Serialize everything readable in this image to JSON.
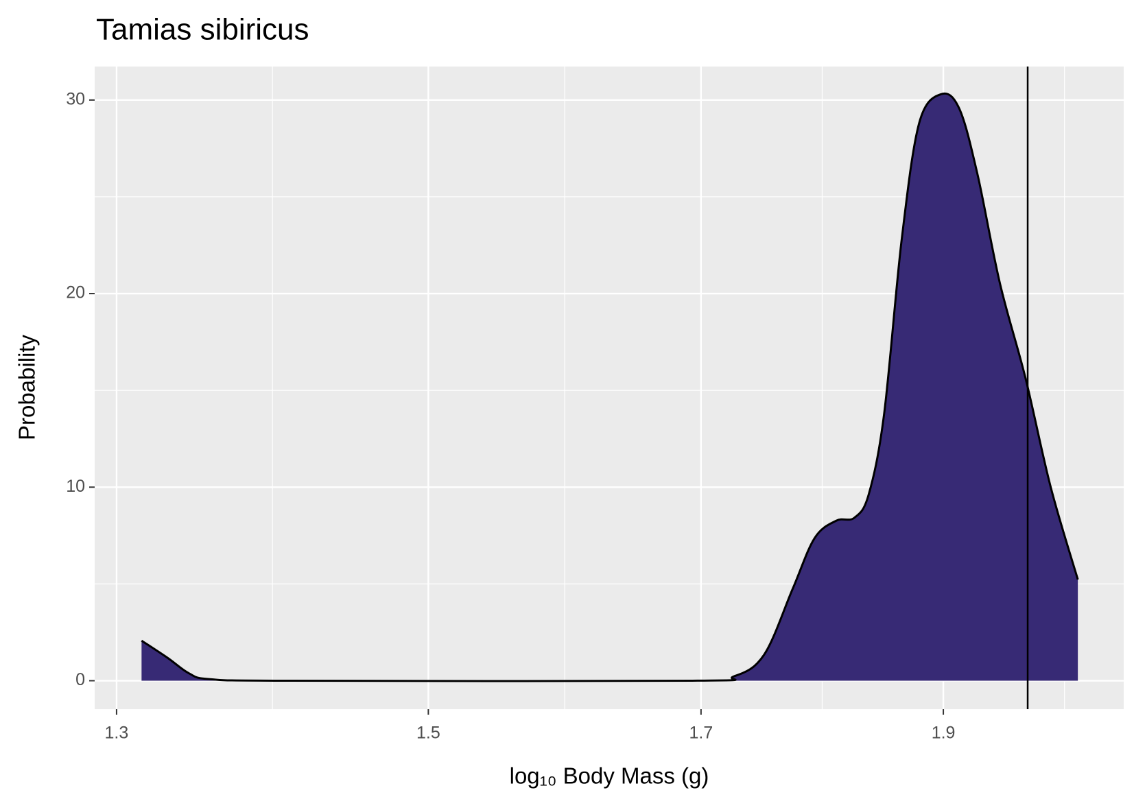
{
  "chart_data": {
    "type": "density",
    "title": "Tamias sibiricus",
    "x_label": "log₁₀ Body Mass (g)",
    "y_label": "Probability",
    "log_x": true,
    "x": [
      1.315,
      1.331,
      1.344,
      1.357,
      1.408,
      1.692,
      1.726,
      1.75,
      1.773,
      1.791,
      1.809,
      1.824,
      1.836,
      1.849,
      1.864,
      1.879,
      1.898,
      1.914,
      1.93,
      1.95,
      1.973,
      1.996,
      2.021
    ],
    "values": [
      2.07,
      1.17,
      0.38,
      0.08,
      0,
      0,
      0.23,
      1.35,
      4.74,
      7.37,
      8.27,
      8.42,
      9.62,
      13.76,
      22.78,
      28.8,
      30.3,
      29.55,
      26.17,
      20.53,
      15.64,
      10.0,
      5.23
    ],
    "color": "#372a75",
    "vline": 1.975,
    "xlim": [
      1.287,
      2.064
    ],
    "ylim": [
      -1.47,
      31.73
    ],
    "xticks": [
      1.3,
      1.5,
      1.7,
      1.9
    ],
    "yticks": [
      0,
      10,
      20,
      30
    ],
    "grid": true
  }
}
